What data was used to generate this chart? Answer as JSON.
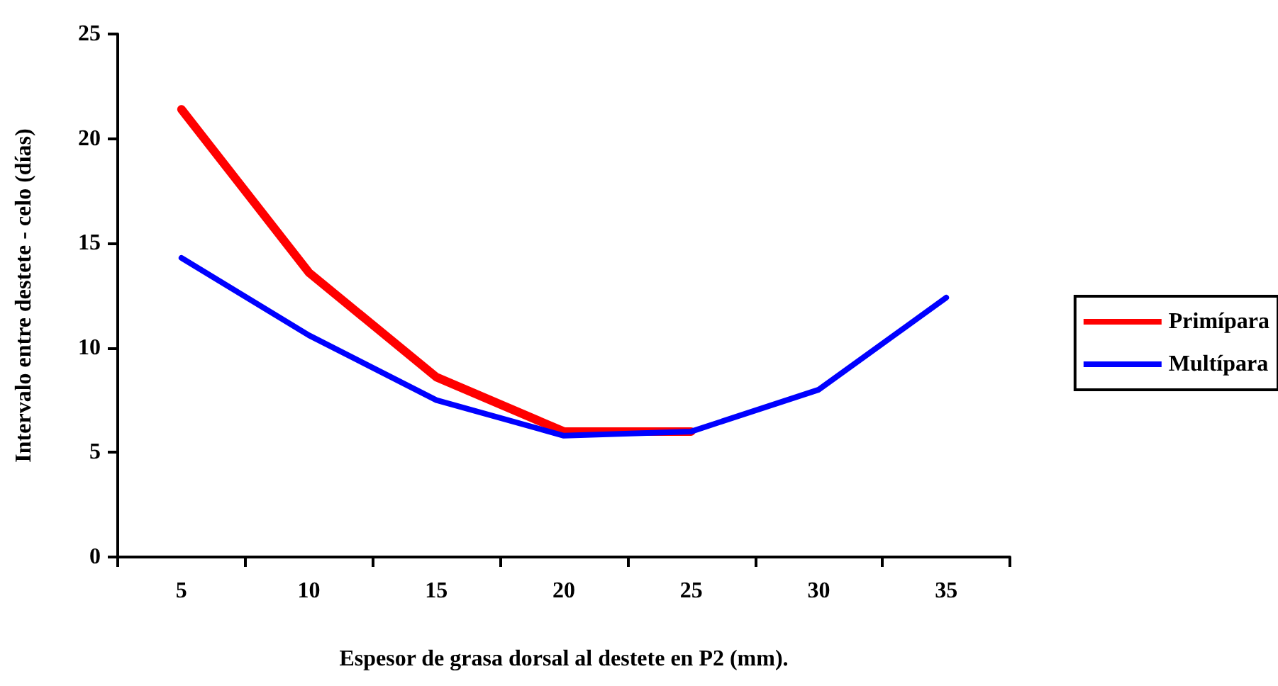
{
  "chart_data": {
    "type": "line",
    "xlabel": "Espesor de grasa dorsal al destete en P2 (mm).",
    "ylabel": "Intervalo entre destete - celo (días)",
    "categories": [
      "5",
      "10",
      "15",
      "20",
      "25",
      "30",
      "35"
    ],
    "series": [
      {
        "name": "Primípara",
        "color": "#ff0000",
        "values": [
          21.4,
          13.6,
          8.6,
          6.0,
          6.0,
          null,
          null
        ]
      },
      {
        "name": "Multípara",
        "color": "#0000ff",
        "values": [
          14.3,
          10.6,
          7.5,
          5.8,
          6.0,
          8.0,
          12.4
        ]
      }
    ],
    "ylim": [
      0,
      25
    ],
    "yticks": [
      0,
      5,
      10,
      15,
      20,
      25
    ],
    "grid": false,
    "legend": "right",
    "marker": "none",
    "line_style": "solid"
  }
}
